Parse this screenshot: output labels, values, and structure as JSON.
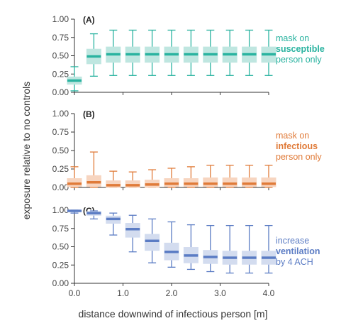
{
  "chart_data": {
    "type": "box",
    "ylabel": "exposure relative to no controls",
    "xlabel": "distance downwind of infectious person [m]",
    "x": [
      0.0,
      0.4,
      0.8,
      1.2,
      1.6,
      2.0,
      2.4,
      2.8,
      3.2,
      3.6,
      4.0
    ],
    "xlim": [
      0.0,
      4.0
    ],
    "xticks": [
      "0.0",
      "1.0",
      "2.0",
      "3.0",
      "4.0"
    ],
    "xtick_values": [
      0.0,
      1.0,
      2.0,
      3.0,
      4.0
    ],
    "ylim": [
      0.0,
      1.0
    ],
    "yticks": [
      "0.00",
      "0.25",
      "0.50",
      "0.75",
      "1.00"
    ],
    "ytick_values": [
      0.0,
      0.25,
      0.5,
      0.75,
      1.0
    ],
    "panels": [
      {
        "label": "(A)",
        "annotation": [
          "mask on",
          "susceptible",
          "person only"
        ],
        "annotation_bold_line": 1,
        "color": "#2ab3a0",
        "fill": "#bfe6e0",
        "x": [
          0.0,
          0.4,
          0.8,
          1.2,
          1.6,
          2.0,
          2.4,
          2.8,
          3.2,
          3.6,
          4.0
        ],
        "median": [
          0.16,
          0.49,
          0.52,
          0.52,
          0.52,
          0.52,
          0.52,
          0.52,
          0.52,
          0.52,
          0.52
        ],
        "q1": [
          0.11,
          0.39,
          0.41,
          0.41,
          0.41,
          0.41,
          0.41,
          0.41,
          0.41,
          0.41,
          0.41
        ],
        "q3": [
          0.21,
          0.59,
          0.62,
          0.62,
          0.62,
          0.62,
          0.62,
          0.62,
          0.62,
          0.62,
          0.62
        ],
        "whislo": [
          0.02,
          0.22,
          0.23,
          0.23,
          0.23,
          0.23,
          0.23,
          0.23,
          0.23,
          0.23,
          0.23
        ],
        "whishi": [
          0.35,
          0.8,
          0.85,
          0.85,
          0.85,
          0.85,
          0.85,
          0.85,
          0.85,
          0.85,
          0.85
        ]
      },
      {
        "label": "(B)",
        "annotation": [
          "mask on",
          "infectious",
          "person only"
        ],
        "annotation_bold_line": 1,
        "color": "#e07b39",
        "fill": "#f7d5c0",
        "x": [
          0.0,
          0.4,
          0.8,
          1.2,
          1.6,
          2.0,
          2.4,
          2.8,
          3.2,
          3.6,
          4.0
        ],
        "median": [
          0.05,
          0.07,
          0.03,
          0.03,
          0.04,
          0.05,
          0.05,
          0.05,
          0.05,
          0.05,
          0.05
        ],
        "q1": [
          0.01,
          0.01,
          0.0,
          0.0,
          0.0,
          0.01,
          0.01,
          0.01,
          0.01,
          0.01,
          0.01
        ],
        "q3": [
          0.12,
          0.16,
          0.09,
          0.09,
          0.1,
          0.12,
          0.12,
          0.13,
          0.13,
          0.13,
          0.13
        ],
        "whislo": [
          0.0,
          0.0,
          0.0,
          0.0,
          0.0,
          0.0,
          0.0,
          0.0,
          0.0,
          0.0,
          0.0
        ],
        "whishi": [
          0.28,
          0.48,
          0.22,
          0.21,
          0.24,
          0.26,
          0.28,
          0.3,
          0.3,
          0.3,
          0.3
        ]
      },
      {
        "label": "(C)",
        "annotation": [
          "increase",
          "ventilation",
          "by 4 ACH"
        ],
        "annotation_bold_line": 1,
        "color": "#5b7cc4",
        "fill": "#d3dcef",
        "x": [
          0.0,
          0.4,
          0.8,
          1.2,
          1.6,
          2.0,
          2.4,
          2.8,
          3.2,
          3.6,
          4.0
        ],
        "median": [
          0.99,
          0.96,
          0.88,
          0.74,
          0.58,
          0.43,
          0.38,
          0.36,
          0.35,
          0.35,
          0.35
        ],
        "q1": [
          0.98,
          0.93,
          0.82,
          0.63,
          0.45,
          0.32,
          0.28,
          0.27,
          0.26,
          0.26,
          0.26
        ],
        "q3": [
          1.0,
          0.98,
          0.92,
          0.82,
          0.67,
          0.55,
          0.49,
          0.45,
          0.44,
          0.44,
          0.44
        ],
        "whislo": [
          0.96,
          0.88,
          0.66,
          0.43,
          0.28,
          0.22,
          0.19,
          0.16,
          0.14,
          0.14,
          0.14
        ],
        "whishi": [
          1.0,
          0.99,
          0.96,
          0.93,
          0.88,
          0.84,
          0.8,
          0.79,
          0.79,
          0.79,
          0.79
        ]
      }
    ]
  }
}
